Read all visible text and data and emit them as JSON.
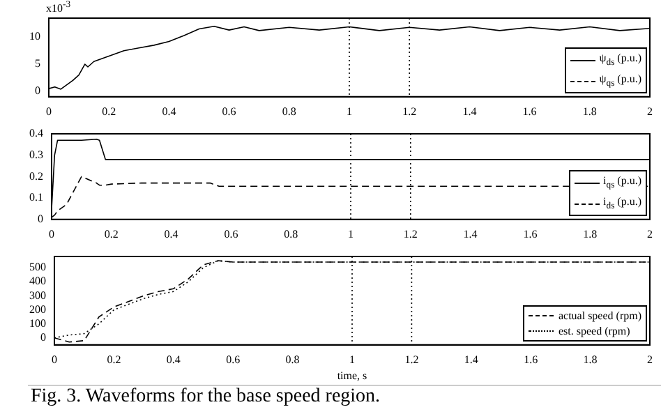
{
  "chart_data": [
    {
      "type": "line",
      "annotations": [
        "x10$^{-3}$"
      ],
      "legend": "bottom right",
      "grid": false,
      "marker": "none",
      "x": [
        0,
        0.02,
        0.04,
        0.06,
        0.08,
        0.1,
        0.12,
        0.13,
        0.15,
        0.2,
        0.25,
        0.3,
        0.35,
        0.4,
        0.45,
        0.5,
        0.55,
        0.6,
        0.65,
        0.7,
        0.8,
        0.9,
        1,
        1.1,
        1.2,
        1.3,
        1.4,
        1.5,
        1.6,
        1.7,
        1.8,
        1.9,
        2
      ],
      "xlim": [
        0,
        2
      ],
      "xticks": [
        0,
        {
          "value": 0.2,
          "label": "0.2"
        },
        {
          "value": 0.4,
          "label": "0.4"
        },
        {
          "value": 0.6,
          "label": "0.6"
        },
        {
          "value": 0.8,
          "label": "0.8"
        },
        1,
        {
          "value": 1.2,
          "label": "1.2"
        },
        {
          "value": 1.4,
          "label": "1.4"
        },
        {
          "value": 1.6,
          "label": "1.6"
        },
        {
          "value": 1.8,
          "label": "1.8"
        },
        2
      ],
      "ylim": [
        -1,
        13.5
      ],
      "yticks": [
        0,
        5,
        10
      ],
      "ref_lines": [
        {
          "axis": "x",
          "value": 1,
          "line_style": "dotted"
        },
        {
          "axis": "x",
          "value": 1.2,
          "line_style": "dotted"
        }
      ],
      "series": [
        {
          "name": "ψ$_{ds}$ (p.u.)",
          "color": "#000000",
          "line_style": "solid",
          "values": [
            0.5,
            0.8,
            0.4,
            1.2,
            2,
            3,
            5,
            4.5,
            5.5,
            6.5,
            7.5,
            8,
            8.5,
            9.2,
            10.3,
            11.5,
            12,
            11.3,
            11.9,
            11.2,
            11.8,
            11.3,
            11.9,
            11.2,
            11.8,
            11.3,
            11.9,
            11.2,
            11.8,
            11.3,
            11.9,
            11.2,
            11.6
          ]
        },
        {
          "name": "ψ$_{qs}$ (p.u.)",
          "color": "#000000",
          "line_style": "dashed",
          "values": [
            null,
            null,
            null,
            null,
            null,
            null,
            null,
            null,
            null,
            null,
            null,
            null,
            null,
            null,
            null,
            null,
            null,
            null,
            null,
            null,
            null,
            null,
            null,
            null,
            null,
            null,
            null,
            null,
            null,
            null,
            null,
            null,
            null
          ]
        }
      ]
    },
    {
      "type": "line",
      "legend": "bottom right",
      "grid": false,
      "marker": "none",
      "x": [
        0,
        0.01,
        0.02,
        0.05,
        0.1,
        0.15,
        0.16,
        0.18,
        0.2,
        0.3,
        0.4,
        0.5,
        0.53,
        0.56,
        0.6,
        0.8,
        1,
        1.2,
        1.4,
        1.6,
        1.8,
        2
      ],
      "xlim": [
        0,
        2
      ],
      "xticks": [
        0,
        {
          "value": 0.2,
          "label": "0.2"
        },
        {
          "value": 0.4,
          "label": "0.4"
        },
        {
          "value": 0.6,
          "label": "0.6"
        },
        {
          "value": 0.8,
          "label": "0.8"
        },
        1,
        {
          "value": 1.2,
          "label": "1.2"
        },
        {
          "value": 1.4,
          "label": "1.4"
        },
        {
          "value": 1.6,
          "label": "1.6"
        },
        {
          "value": 1.8,
          "label": "1.8"
        },
        2
      ],
      "ylim": [
        0,
        0.4
      ],
      "yticks": [
        0,
        0.1,
        0.2,
        0.3,
        0.4
      ],
      "ref_lines": [
        {
          "axis": "x",
          "value": 1,
          "line_style": "dotted"
        },
        {
          "axis": "x",
          "value": 1.2,
          "line_style": "dotted"
        }
      ],
      "series": [
        {
          "name": "i$_{qs}$ (p.u.)",
          "color": "#000000",
          "line_style": "solid",
          "values": [
            0.05,
            0.3,
            0.37,
            0.37,
            0.37,
            0.375,
            0.37,
            0.28,
            0.28,
            0.28,
            0.28,
            0.28,
            0.28,
            0.28,
            0.28,
            0.28,
            0.28,
            0.28,
            0.28,
            0.28,
            0.28,
            0.28
          ]
        },
        {
          "name": "i$_{ds}$ (p.u.)",
          "color": "#000000",
          "line_style": "dashed",
          "values": [
            0.01,
            0.02,
            0.04,
            0.07,
            0.2,
            0.17,
            0.16,
            0.16,
            0.165,
            0.17,
            0.17,
            0.17,
            0.17,
            0.155,
            0.155,
            0.155,
            0.155,
            0.155,
            0.155,
            0.155,
            0.155,
            0.155
          ]
        }
      ]
    },
    {
      "type": "line",
      "xlabel": "time, s",
      "legend": "bottom right",
      "grid": false,
      "marker": "none",
      "annotations": [
        "Fig. 3.  Waveforms for the base speed region."
      ],
      "x": [
        0,
        0.05,
        0.1,
        0.15,
        0.2,
        0.25,
        0.3,
        0.35,
        0.4,
        0.45,
        0.5,
        0.55,
        0.6,
        0.8,
        1,
        1.2,
        1.4,
        1.6,
        1.8,
        2
      ],
      "xlim": [
        0,
        2
      ],
      "xticks": [
        0,
        {
          "value": 0.2,
          "label": "0.2"
        },
        {
          "value": 0.4,
          "label": "0.4"
        },
        {
          "value": 0.6,
          "label": "0.6"
        },
        {
          "value": 0.8,
          "label": "0.8"
        },
        1,
        {
          "value": 1.2,
          "label": "1.2"
        },
        {
          "value": 1.4,
          "label": "1.4"
        },
        {
          "value": 1.6,
          "label": "1.6"
        },
        {
          "value": 1.8,
          "label": "1.8"
        },
        2
      ],
      "ylim": [
        -50,
        580
      ],
      "yticks": [
        0,
        100,
        200,
        300,
        400,
        500
      ],
      "ref_lines": [
        {
          "axis": "x",
          "value": 1,
          "line_style": "dotted"
        },
        {
          "axis": "x",
          "value": 1.2,
          "line_style": "dotted"
        }
      ],
      "series": [
        {
          "name": "actual speed (rpm)",
          "color": "#000000",
          "line_style": "dashed",
          "values": [
            0,
            -30,
            -20,
            150,
            220,
            260,
            300,
            330,
            350,
            420,
            520,
            550,
            540,
            540,
            540,
            540,
            540,
            540,
            540,
            540
          ]
        },
        {
          "name": "est. speed (rpm)",
          "color": "#000000",
          "line_style": "dotted",
          "values": [
            0,
            20,
            30,
            100,
            200,
            240,
            280,
            310,
            330,
            400,
            500,
            550,
            540,
            540,
            540,
            540,
            540,
            540,
            540,
            540
          ]
        }
      ]
    }
  ]
}
